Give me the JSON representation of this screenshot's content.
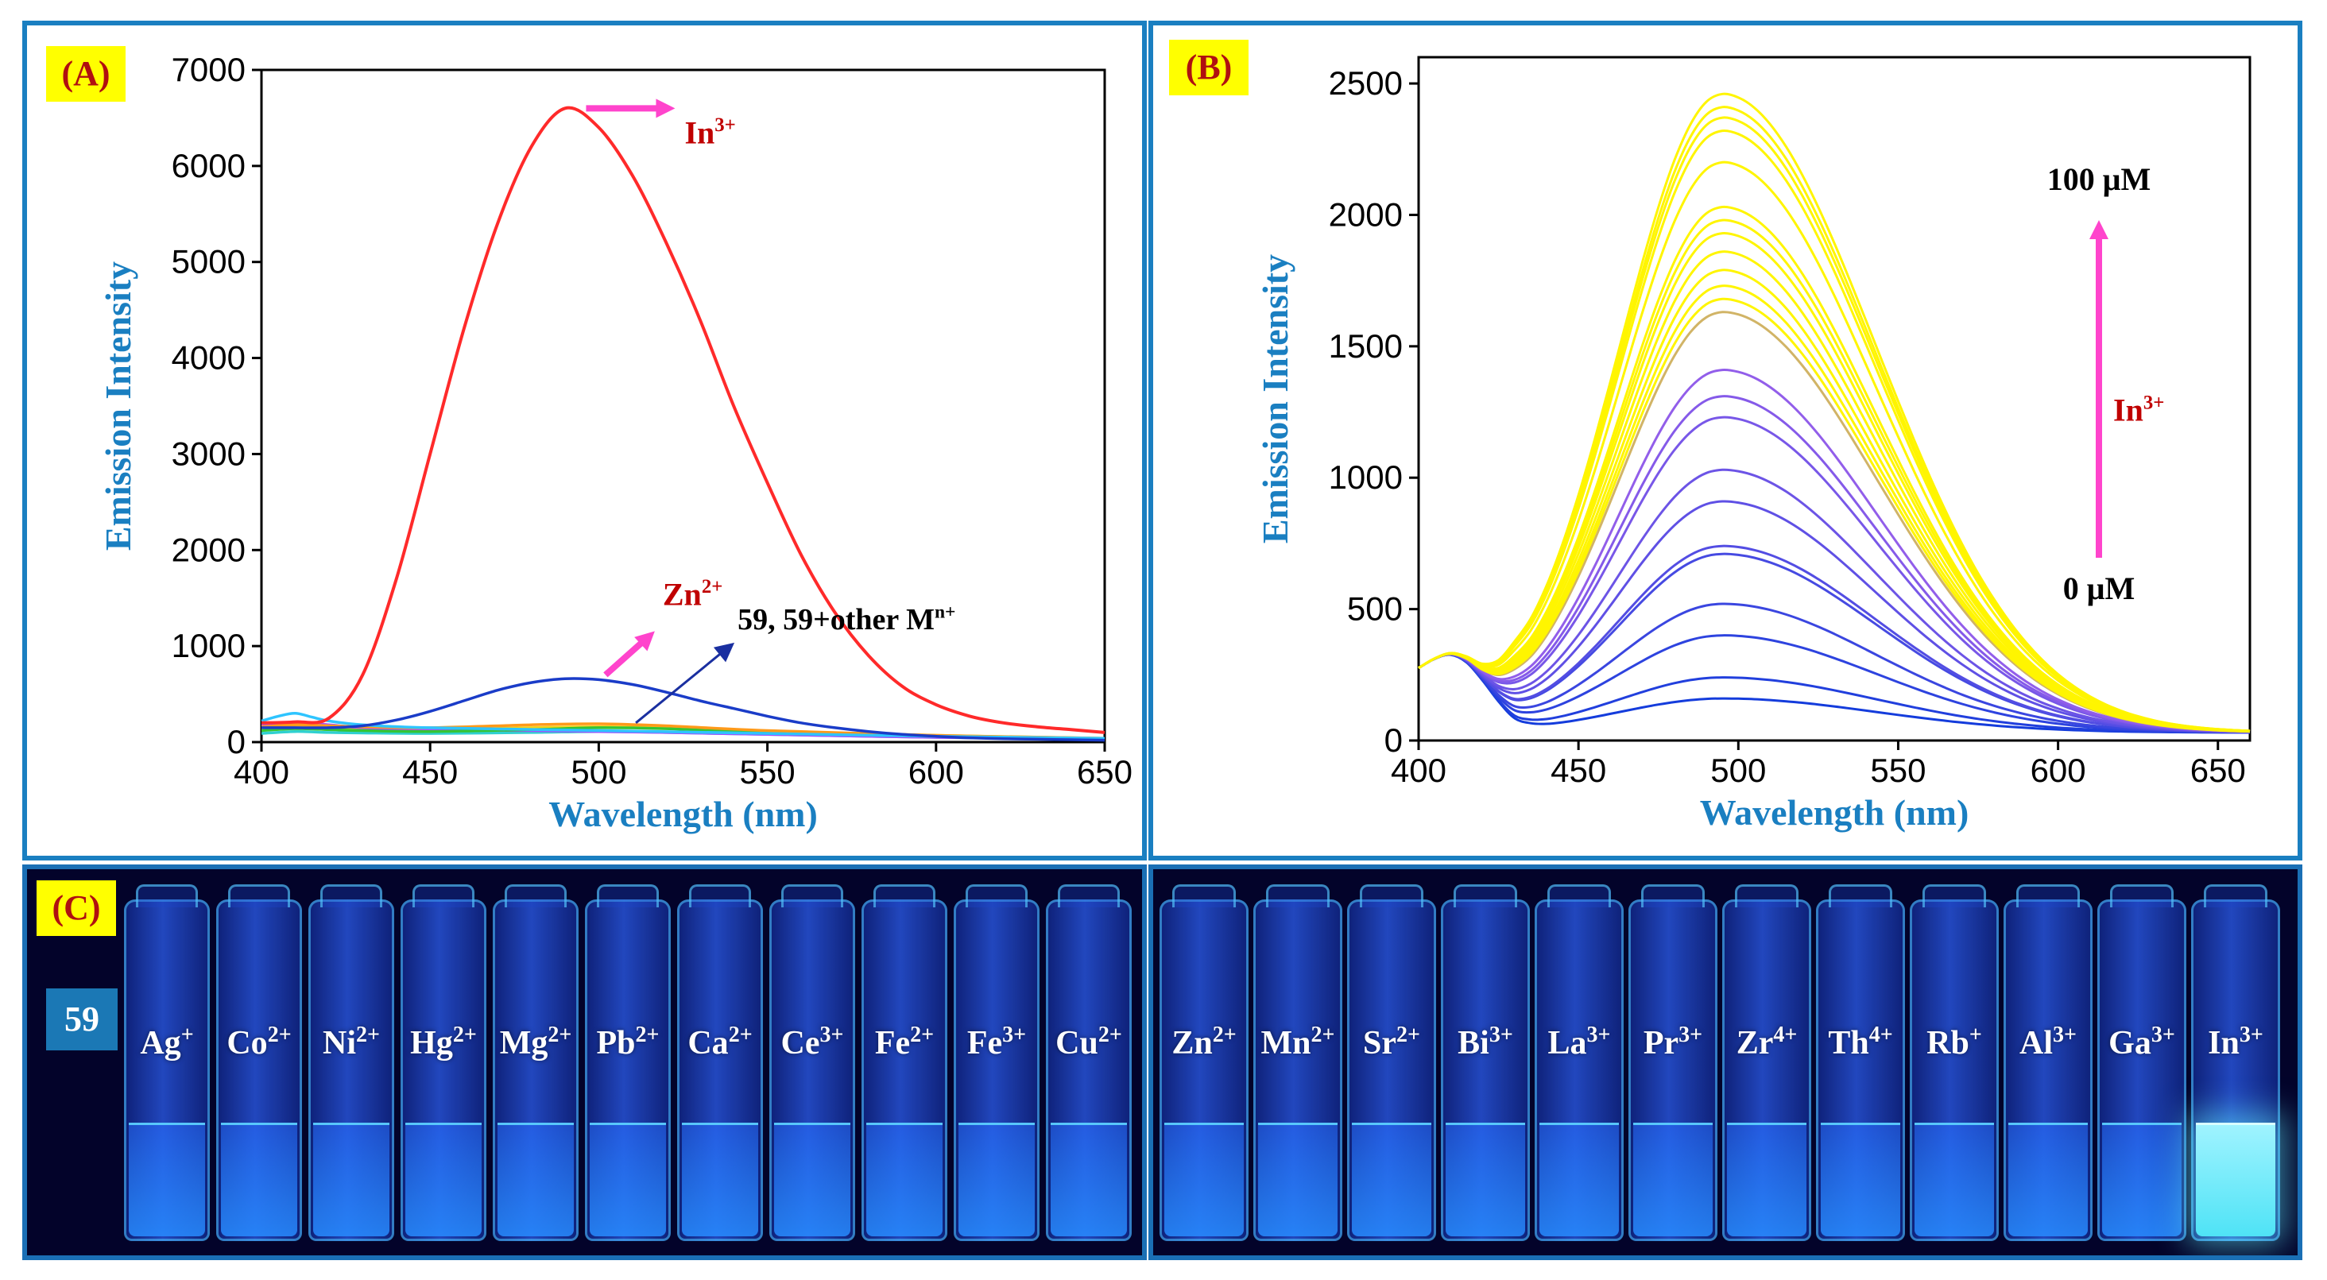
{
  "colors": {
    "frame": "#1a7fc1",
    "tag_bg": "#ffff00",
    "tag_text": "#b01010",
    "axis_label": "#1a7fc1",
    "in_label": "#c00000",
    "arrow": "#ff44cc"
  },
  "chart_data": [
    {
      "panel_label": "(A)",
      "type": "line",
      "xlabel": "Wavelength (nm)",
      "ylabel": "Emission Intensity",
      "xlim": [
        400,
        650
      ],
      "ylim": [
        0,
        7000
      ],
      "xticks": [
        "400",
        "450",
        "500",
        "550",
        "600",
        "650"
      ],
      "yticks": [
        "0",
        "1000",
        "2000",
        "3000",
        "4000",
        "5000",
        "6000",
        "7000"
      ],
      "annotations": {
        "in_base": "In",
        "in_sup": "3+",
        "zn_base": "Zn",
        "zn_sup": "2+",
        "other_base": "59, 59+other M",
        "other_sup": "n+"
      },
      "series": [
        {
          "color": "#ff2a2a",
          "x": [
            400,
            410,
            420,
            430,
            440,
            450,
            460,
            470,
            480,
            490,
            500,
            510,
            520,
            530,
            540,
            550,
            560,
            570,
            580,
            590,
            600,
            610,
            620,
            630,
            640,
            650
          ],
          "values": [
            200,
            210,
            250,
            700,
            1700,
            3000,
            4300,
            5400,
            6200,
            6600,
            6400,
            5900,
            5200,
            4400,
            3500,
            2700,
            1950,
            1350,
            900,
            580,
            390,
            270,
            200,
            160,
            130,
            100
          ]
        },
        {
          "color": "#1a3cc8",
          "x": [
            400,
            410,
            420,
            430,
            440,
            450,
            460,
            470,
            480,
            490,
            500,
            510,
            520,
            530,
            540,
            550,
            560,
            570,
            580,
            590,
            600,
            610,
            620,
            630,
            640,
            650
          ],
          "values": [
            150,
            150,
            150,
            170,
            230,
            320,
            430,
            540,
            620,
            660,
            650,
            600,
            520,
            430,
            350,
            270,
            200,
            150,
            110,
            80,
            60,
            45,
            35,
            30,
            25,
            20
          ]
        },
        {
          "color": "#2ec4ff",
          "x": [
            400,
            405,
            410,
            415,
            420,
            430,
            450,
            500,
            550,
            600,
            650
          ],
          "values": [
            220,
            270,
            300,
            260,
            220,
            180,
            150,
            120,
            90,
            60,
            40
          ]
        },
        {
          "color": "#ff9a1a",
          "x": [
            400,
            410,
            420,
            430,
            450,
            480,
            500,
            520,
            550,
            600,
            650
          ],
          "values": [
            160,
            180,
            170,
            160,
            150,
            180,
            190,
            170,
            120,
            70,
            40
          ]
        },
        {
          "color": "#35c435",
          "x": [
            400,
            410,
            420,
            430,
            450,
            480,
            500,
            520,
            550,
            600,
            650
          ],
          "values": [
            120,
            140,
            130,
            120,
            110,
            130,
            150,
            140,
            100,
            60,
            30
          ]
        },
        {
          "color": "#a64dff",
          "x": [
            400,
            410,
            420,
            430,
            450,
            480,
            500,
            520,
            550,
            600,
            650
          ],
          "values": [
            180,
            200,
            180,
            150,
            130,
            120,
            110,
            100,
            80,
            50,
            30
          ]
        },
        {
          "color": "#2fd0d0",
          "x": [
            400,
            410,
            420,
            430,
            450,
            480,
            500,
            520,
            550,
            600,
            650
          ],
          "values": [
            90,
            110,
            100,
            95,
            90,
            100,
            110,
            100,
            80,
            50,
            30
          ]
        },
        {
          "color": "#f2d21a",
          "x": [
            400,
            410,
            420,
            430,
            450,
            480,
            500,
            520,
            550,
            600,
            650
          ],
          "values": [
            140,
            160,
            150,
            140,
            130,
            150,
            160,
            150,
            110,
            70,
            40
          ]
        }
      ]
    },
    {
      "panel_label": "(B)",
      "type": "line",
      "xlabel": "Wavelength (nm)",
      "ylabel": "Emission Intensity",
      "xlim": [
        400,
        660
      ],
      "ylim": [
        0,
        2600
      ],
      "xticks": [
        "400",
        "450",
        "500",
        "550",
        "600",
        "650"
      ],
      "yticks": [
        "0",
        "500",
        "1000",
        "1500",
        "2000",
        "2500"
      ],
      "annotations": {
        "top": "100 μM",
        "bottom": "0 μM",
        "ion_base": "In",
        "ion_sup": "3+"
      },
      "curve_peaks": [
        130,
        210,
        370,
        490,
        680,
        710,
        880,
        1000,
        1200,
        1280,
        1380,
        1600,
        1650,
        1700,
        1760,
        1830,
        1900,
        1950,
        2000,
        2170,
        2290,
        2340,
        2380,
        2430
      ],
      "curve_peak_x": 495
    }
  ],
  "photo": {
    "panel_label": "(C)",
    "sample_label": "59",
    "row1": [
      {
        "base": "Ag",
        "sup": "+"
      },
      {
        "base": "Co",
        "sup": "2+"
      },
      {
        "base": "Ni",
        "sup": "2+"
      },
      {
        "base": "Hg",
        "sup": "2+"
      },
      {
        "base": "Mg",
        "sup": "2+"
      },
      {
        "base": "Pb",
        "sup": "2+"
      },
      {
        "base": "Ca",
        "sup": "2+"
      },
      {
        "base": "Ce",
        "sup": "3+"
      },
      {
        "base": "Fe",
        "sup": "2+"
      },
      {
        "base": "Fe",
        "sup": "3+"
      },
      {
        "base": "Cu",
        "sup": "2+"
      }
    ],
    "row2": [
      {
        "base": "Zn",
        "sup": "2+"
      },
      {
        "base": "Mn",
        "sup": "2+"
      },
      {
        "base": "Sr",
        "sup": "2+"
      },
      {
        "base": "Bi",
        "sup": "3+"
      },
      {
        "base": "La",
        "sup": "3+"
      },
      {
        "base": "Pr",
        "sup": "3+"
      },
      {
        "base": "Zr",
        "sup": "4+"
      },
      {
        "base": "Th",
        "sup": "4+"
      },
      {
        "base": "Rb",
        "sup": "+"
      },
      {
        "base": "Al",
        "sup": "3+"
      },
      {
        "base": "Ga",
        "sup": "3+"
      },
      {
        "base": "In",
        "sup": "3+"
      }
    ],
    "glowing": "In"
  }
}
